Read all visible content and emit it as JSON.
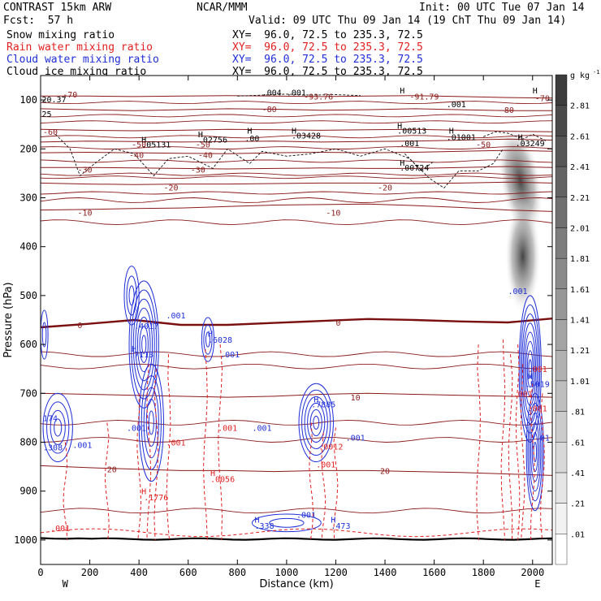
{
  "header": {
    "model": "CONTRAST 15km ARW",
    "org": "NCAR/MMM",
    "init": "Init: 00 UTC Tue 07 Jan 14",
    "fcst": "Fcst:  57 h",
    "valid": "Valid: 09 UTC Thu 09 Jan 14 (19 ChT Thu 09 Jan 14)",
    "fields": [
      {
        "name": "Snow mixing ratio",
        "xy": "XY=  96.0, 72.5 to 235.3, 72.5",
        "color": "#000000"
      },
      {
        "name": "Rain water mixing ratio",
        "xy": "XY=  96.0, 72.5 to 235.3, 72.5",
        "color": "#e21f1f"
      },
      {
        "name": "Cloud water mixing ratio",
        "xy": "XY=  96.0, 72.5 to 235.3, 72.5",
        "color": "#1f2fd8"
      },
      {
        "name": "Cloud ice mixing ratio",
        "xy": "XY=  96.0, 72.5 to 235.3, 72.5",
        "color": "#000000"
      }
    ]
  },
  "chart_data": {
    "type": "cross-section",
    "xlabel": "Distance (km)",
    "ylabel": "Pressure (hPa)",
    "xlim": [
      0,
      2080
    ],
    "ylim": [
      1050,
      50
    ],
    "x_ticks": [
      0,
      200,
      400,
      600,
      800,
      1000,
      1200,
      1400,
      1600,
      1800,
      2000
    ],
    "y_ticks": [
      100,
      200,
      300,
      400,
      500,
      600,
      700,
      800,
      900,
      1000
    ],
    "x_end_labels": {
      "left": "W",
      "right": "E"
    },
    "colorbar": {
      "unit": "g kg",
      "unit_exp": "-1",
      "levels": [
        ".01",
        ".21",
        ".41",
        ".61",
        ".81",
        "1.01",
        "1.21",
        "1.41",
        "1.61",
        "1.81",
        "2.01",
        "2.21",
        "2.41",
        "2.61",
        "2.81"
      ]
    },
    "temperature_contours": [
      {
        "label": "-80",
        "p": [
          118,
          120,
          122,
          120,
          118,
          119,
          121,
          120,
          118,
          120,
          122,
          122
        ]
      },
      {
        "label": "-70",
        "p": [
          92,
          92,
          93,
          92,
          91,
          92,
          93,
          92,
          91,
          93,
          95,
          96
        ]
      },
      {
        "label": "-60",
        "p": [
          160,
          162,
          163,
          162,
          160,
          161,
          162,
          161,
          160,
          162,
          164,
          165
        ]
      },
      {
        "label": "-50",
        "p": [
          186,
          184,
          185,
          186,
          185,
          184,
          186,
          185,
          184,
          182,
          180,
          182
        ]
      },
      {
        "label": "-40",
        "p": [
          208,
          207,
          208,
          209,
          210,
          208,
          207,
          208,
          207,
          205,
          203,
          205
        ]
      },
      {
        "label": "-30",
        "p": [
          238,
          238,
          239,
          240,
          241,
          240,
          239,
          240,
          240,
          238,
          236,
          238
        ]
      },
      {
        "label": "-20",
        "p": [
          270,
          272,
          273,
          272,
          272,
          271,
          270,
          270,
          271,
          270,
          268,
          270
        ]
      },
      {
        "label": "-10",
        "p": [
          325,
          324,
          322,
          321,
          318,
          315,
          314,
          313,
          316,
          320,
          325,
          328
        ]
      },
      {
        "label": "0",
        "p": [
          565,
          558,
          550,
          560,
          560,
          556,
          552,
          548,
          550,
          553,
          555,
          547
        ]
      },
      {
        "label": "10",
        "p": [
          700,
          702,
          704,
          706,
          708,
          706,
          702,
          700,
          702,
          704,
          706,
          708
        ]
      },
      {
        "label": "20",
        "p": [
          848,
          852,
          855,
          858,
          858,
          860,
          858,
          858,
          860,
          862,
          865,
          868
        ]
      }
    ],
    "contour_labels": {
      "temperature": [
        {
          "t": "-80",
          "x": 900,
          "p": 118
        },
        {
          "t": "-80",
          "x": 1865,
          "p": 120
        },
        {
          "t": "-70",
          "x": 90,
          "p": 88
        },
        {
          "t": "-70.54",
          "x": 2010,
          "p": 96
        },
        {
          "t": "-93.76",
          "x": 1070,
          "p": 92
        },
        {
          "t": "-91.79",
          "x": 1500,
          "p": 92
        },
        {
          "t": "-60",
          "x": 10,
          "p": 165
        },
        {
          "t": "-50",
          "x": 370,
          "p": 190
        },
        {
          "t": "-50",
          "x": 630,
          "p": 190
        },
        {
          "t": "-50",
          "x": 1770,
          "p": 190
        },
        {
          "t": "-40",
          "x": 360,
          "p": 212
        },
        {
          "t": "-40",
          "x": 640,
          "p": 212
        },
        {
          "t": "-30",
          "x": 150,
          "p": 242
        },
        {
          "t": "-30",
          "x": 610,
          "p": 242
        },
        {
          "t": "-20",
          "x": 500,
          "p": 278
        },
        {
          "t": "-20",
          "x": 1370,
          "p": 278
        },
        {
          "t": "-10",
          "x": 150,
          "p": 330
        },
        {
          "t": "-10",
          "x": 1160,
          "p": 330
        },
        {
          "t": "0",
          "x": 150,
          "p": 560
        },
        {
          "t": "0",
          "x": 1200,
          "p": 555
        },
        {
          "t": "10",
          "x": 1260,
          "p": 708
        },
        {
          "t": "20",
          "x": 270,
          "p": 855
        },
        {
          "t": "20",
          "x": 1380,
          "p": 858
        }
      ],
      "maxima": [
        {
          "t": ".05131",
          "x": 410,
          "p": 190
        },
        {
          "t": ".02756",
          "x": 640,
          "p": 180
        },
        {
          "t": ".00",
          "x": 830,
          "p": 178
        },
        {
          "t": ".03428",
          "x": 1020,
          "p": 172
        },
        {
          "t": ".00513",
          "x": 1450,
          "p": 162
        },
        {
          "t": ".01001",
          "x": 1650,
          "p": 175
        },
        {
          "t": ".03249",
          "x": 1930,
          "p": 188
        },
        {
          "t": ".00724",
          "x": 1460,
          "p": 238
        },
        {
          "t": ".004",
          "x": 900,
          "p": 84
        },
        {
          "t": ".001",
          "x": 1000,
          "p": 84
        },
        {
          "t": ".001",
          "x": 1650,
          "p": 108
        },
        {
          "t": ".001",
          "x": 1460,
          "p": 188
        },
        {
          "t": "20.37",
          "x": 5,
          "p": 98
        },
        {
          "t": "25",
          "x": 5,
          "p": 128
        }
      ]
    },
    "cloud_water": {
      "labels": [
        {
          "t": ".7113",
          "x": 360,
          "p": 620
        },
        {
          "t": ".4017",
          "x": 380,
          "p": 562
        },
        {
          "t": ".001",
          "x": 510,
          "p": 540
        },
        {
          "t": ".6028",
          "x": 680,
          "p": 590
        },
        {
          "t": ".001",
          "x": 730,
          "p": 620
        },
        {
          "t": ".001",
          "x": 350,
          "p": 770
        },
        {
          "t": ".001",
          "x": 860,
          "p": 770
        },
        {
          "t": "174",
          "x": 10,
          "p": 750
        },
        {
          "t": ".308",
          "x": 10,
          "p": 810
        },
        {
          "t": ".001",
          "x": 130,
          "p": 805
        },
        {
          "t": ".7885",
          "x": 1100,
          "p": 722
        },
        {
          "t": ".001",
          "x": 1240,
          "p": 790
        },
        {
          "t": ".001",
          "x": 1040,
          "p": 948
        },
        {
          "t": ".338",
          "x": 870,
          "p": 970
        },
        {
          "t": ".473",
          "x": 1180,
          "p": 970
        },
        {
          "t": ".001",
          "x": 1900,
          "p": 490
        },
        {
          "t": ".5019",
          "x": 1970,
          "p": 680
        },
        {
          "t": ".01",
          "x": 2010,
          "p": 790
        }
      ]
    },
    "rain_water": {
      "labels": [
        {
          "t": ".001",
          "x": 40,
          "p": 975
        },
        {
          "t": ".1776",
          "x": 420,
          "p": 912
        },
        {
          "t": ".001",
          "x": 510,
          "p": 800
        },
        {
          "t": ".0056",
          "x": 690,
          "p": 875
        },
        {
          "t": ".001",
          "x": 720,
          "p": 770
        },
        {
          "t": ".0012",
          "x": 1130,
          "p": 808
        },
        {
          "t": ".001",
          "x": 1120,
          "p": 845
        },
        {
          "t": ".001",
          "x": 1980,
          "p": 650
        },
        {
          "t": ".001",
          "x": 1920,
          "p": 700
        },
        {
          "t": ".001",
          "x": 1980,
          "p": 730
        }
      ]
    },
    "h_markers": [
      {
        "x": 410,
        "p": 180,
        "c": "#000000"
      },
      {
        "x": 640,
        "p": 170,
        "c": "#000000"
      },
      {
        "x": 1020,
        "p": 162,
        "c": "#000000"
      },
      {
        "x": 1450,
        "p": 152,
        "c": "#000000"
      },
      {
        "x": 1660,
        "p": 162,
        "c": "#000000"
      },
      {
        "x": 1940,
        "p": 175,
        "c": "#000000"
      },
      {
        "x": 1460,
        "p": 228,
        "c": "#000000"
      },
      {
        "x": 2000,
        "p": 80,
        "c": "#000000"
      },
      {
        "x": 840,
        "p": 162,
        "c": "#000000"
      },
      {
        "x": 1460,
        "p": 80,
        "c": "#000000"
      },
      {
        "x": 370,
        "p": 608,
        "c": "#1f2fd8"
      },
      {
        "x": 680,
        "p": 577,
        "c": "#1f2fd8"
      },
      {
        "x": 1110,
        "p": 712,
        "c": "#1f2fd8"
      },
      {
        "x": 870,
        "p": 958,
        "c": "#1f2fd8"
      },
      {
        "x": 1180,
        "p": 958,
        "c": "#1f2fd8"
      },
      {
        "x": 1980,
        "p": 665,
        "c": "#1f2fd8"
      },
      {
        "x": 410,
        "p": 900,
        "c": "#e21f1f"
      },
      {
        "x": 690,
        "p": 862,
        "c": "#e21f1f"
      }
    ]
  }
}
